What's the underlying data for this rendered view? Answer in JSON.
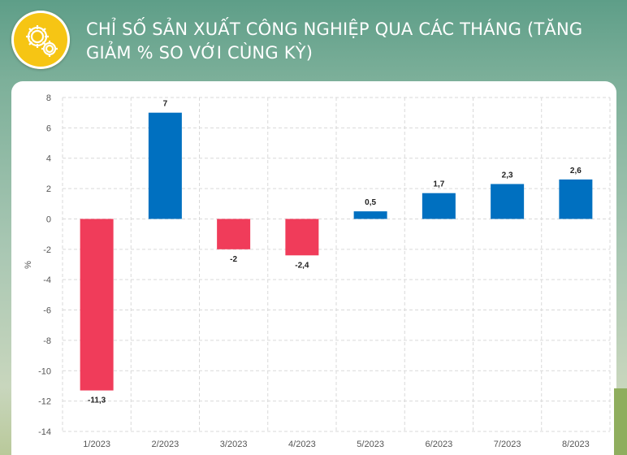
{
  "header": {
    "title": "CHỈ SỐ SẢN XUẤT CÔNG NGHIỆP QUA CÁC THÁNG (TĂNG GIẢM % SO VỚI CÙNG KỲ)",
    "logo_icon": "gear-icon"
  },
  "chart_data": {
    "type": "bar",
    "title": "CHỈ SỐ SẢN XUẤT CÔNG NGHIỆP QUA CÁC THÁNG (TĂNG GIẢM % SO VỚI CÙNG KỲ)",
    "categories": [
      "1/2023",
      "2/2023",
      "3/2023",
      "4/2023",
      "5/2023",
      "6/2023",
      "7/2023",
      "8/2023"
    ],
    "values": [
      -11.3,
      7,
      -2,
      -2.4,
      0.5,
      1.7,
      2.3,
      2.6
    ],
    "value_labels": [
      "-11,3",
      "7",
      "-2",
      "-2,4",
      "0,5",
      "1,7",
      "2,3",
      "2,6"
    ],
    "xlabel": "",
    "ylabel": "%",
    "ylim": [
      -14,
      8
    ],
    "yticks": [
      8,
      6,
      4,
      2,
      0,
      -2,
      -4,
      -6,
      -8,
      -10,
      -12,
      -14
    ],
    "grid": true,
    "legend": "none",
    "colors": {
      "positive": "#0070c0",
      "negative": "#f03c5a"
    }
  }
}
